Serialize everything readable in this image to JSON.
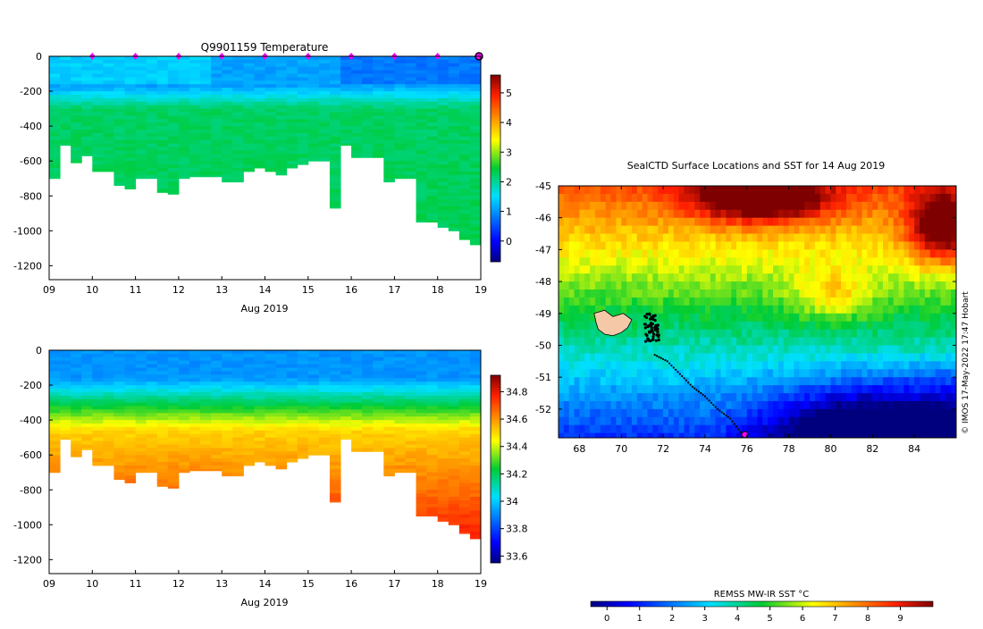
{
  "chart_data": [
    {
      "id": "temperature-section",
      "type": "heatmap",
      "title": "Q9901159  Temperature",
      "xlabel": "Aug 2019",
      "ylabel": "",
      "x_ticks": [
        "09",
        "10",
        "11",
        "12",
        "13",
        "14",
        "15",
        "16",
        "17",
        "18",
        "19"
      ],
      "y_ticks": [
        "0",
        "-200",
        "-400",
        "-600",
        "-800",
        "-1000",
        "-1200"
      ],
      "xlim": [
        9,
        19
      ],
      "ylim": [
        -1280,
        0
      ],
      "colorbar": {
        "ticks": [
          "0",
          "1",
          "2",
          "3",
          "4",
          "5"
        ],
        "range": [
          -0.7,
          5.6
        ]
      },
      "grid": false,
      "markers": [
        10,
        11,
        12,
        13,
        14,
        15,
        16,
        17,
        18,
        19
      ],
      "profile_times": [
        9.0,
        9.25,
        9.5,
        9.75,
        10.0,
        10.25,
        10.5,
        10.75,
        11.0,
        11.25,
        11.5,
        11.75,
        12.0,
        12.25,
        12.5,
        12.75,
        13.0,
        13.25,
        13.5,
        13.75,
        14.0,
        14.25,
        14.5,
        14.75,
        15.0,
        15.25,
        15.5,
        15.75,
        16.0,
        16.25,
        16.5,
        16.75,
        17.0,
        17.25,
        17.5,
        17.75,
        18.0,
        18.25,
        18.5,
        18.75,
        19.0
      ],
      "profile_max_depth": [
        700,
        510,
        610,
        570,
        660,
        660,
        740,
        760,
        700,
        700,
        780,
        790,
        700,
        690,
        690,
        690,
        720,
        720,
        660,
        640,
        660,
        680,
        640,
        620,
        600,
        600,
        870,
        510,
        580,
        580,
        580,
        720,
        700,
        700,
        950,
        950,
        980,
        1000,
        1050,
        1080,
        1070
      ],
      "surface_temp": 1.0,
      "deep_temp": 2.3
    },
    {
      "id": "salinity-section",
      "type": "heatmap",
      "title": "",
      "xlabel": "Aug 2019",
      "ylabel": "",
      "x_ticks": [
        "09",
        "10",
        "11",
        "12",
        "13",
        "14",
        "15",
        "16",
        "17",
        "18",
        "19"
      ],
      "y_ticks": [
        "0",
        "-200",
        "-400",
        "-600",
        "-800",
        "-1000",
        "-1200"
      ],
      "xlim": [
        9,
        19
      ],
      "ylim": [
        -1280,
        0
      ],
      "colorbar": {
        "ticks": [
          "33.6",
          "33.8",
          "34",
          "34.2",
          "34.4",
          "34.6",
          "34.8"
        ],
        "range": [
          33.55,
          34.92
        ]
      },
      "grid": false,
      "surface_sal": 33.92,
      "deep_sal": 34.7
    },
    {
      "id": "sst-map",
      "type": "heatmap",
      "title": "SealCTD Surface Locations and SST for 14 Aug 2019",
      "xlabel": "",
      "ylabel": "",
      "x_ticks": [
        "68",
        "70",
        "72",
        "74",
        "76",
        "78",
        "80",
        "82",
        "84"
      ],
      "y_ticks": [
        "-45",
        "-46",
        "-47",
        "-48",
        "-49",
        "-50",
        "-51",
        "-52"
      ],
      "xlim": [
        67,
        86
      ],
      "ylim": [
        -52.9,
        -45
      ],
      "colorbar": {
        "label": "REMSS MW-IR SST °C",
        "ticks": [
          "0",
          "1",
          "2",
          "3",
          "4",
          "5",
          "6",
          "7",
          "8",
          "9"
        ],
        "range": [
          -0.5,
          10
        ]
      },
      "track": [
        [
          71.6,
          -50.3
        ],
        [
          72.2,
          -50.5
        ],
        [
          72.8,
          -50.9
        ],
        [
          73.4,
          -51.3
        ],
        [
          74.0,
          -51.6
        ],
        [
          74.6,
          -52.0
        ],
        [
          75.2,
          -52.3
        ],
        [
          75.8,
          -52.8
        ]
      ],
      "current_position": [
        75.9,
        -52.8
      ]
    }
  ],
  "credit": "© IMOS 17-May-2022 17:47 Hobart",
  "colors": {
    "marker_magenta": "#ff00ff",
    "land_fill": "#f5c8a8",
    "track_dot": "#000000"
  }
}
